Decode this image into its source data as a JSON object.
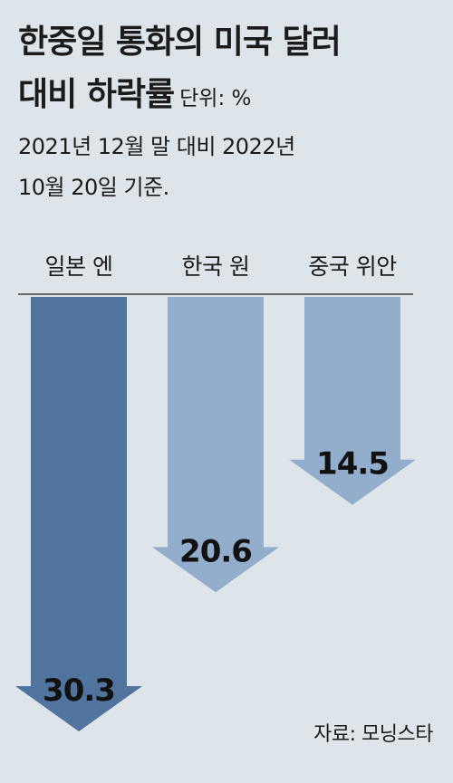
{
  "header": {
    "title_line1": "한중일 통화의 미국 달러",
    "title_line2": "대비 하락률",
    "unit": "단위: %",
    "subtitle_line1": "2021년 12월 말 대비 2022년",
    "subtitle_line2": "10월 20일 기준."
  },
  "chart_data": {
    "type": "bar",
    "orientation": "downward-arrows",
    "categories": [
      "일본 엔",
      "한국 원",
      "중국 위안"
    ],
    "values": [
      30.3,
      20.6,
      14.5
    ],
    "value_labels": [
      "30.3",
      "20.6",
      "14.5"
    ],
    "ylim": [
      0,
      30.3
    ],
    "colors": [
      "#50749e",
      "#93adcc",
      "#93adcc"
    ]
  },
  "footer": {
    "source": "자료: 모닝스타"
  }
}
